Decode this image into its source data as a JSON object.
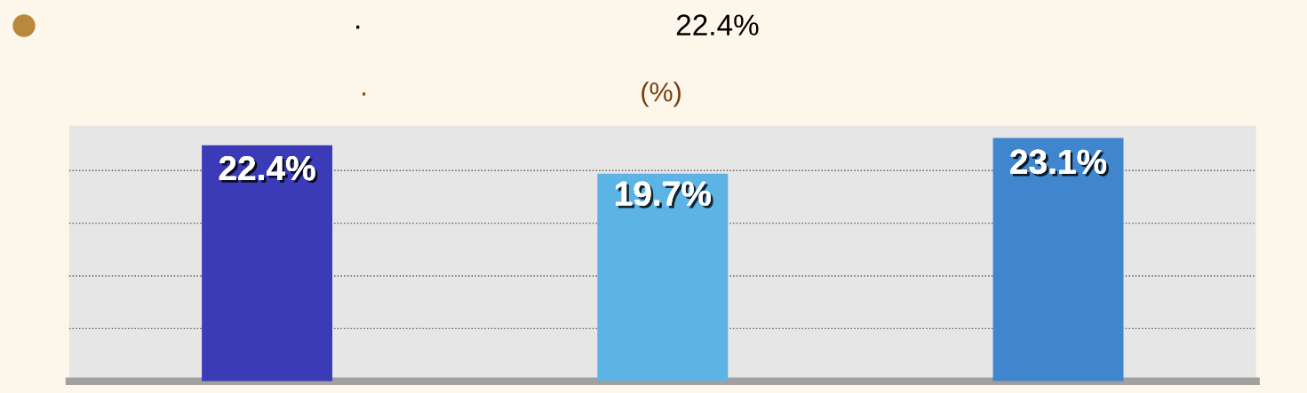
{
  "chart_data": {
    "type": "bar",
    "title": "·                                      22.4%",
    "subtitle": "·                                    (%)",
    "categories": [
      null,
      null,
      null
    ],
    "values": [
      22.4,
      19.7,
      23.1
    ],
    "colors": [
      "#3b3bb8",
      "#5cb4e4",
      "#3f86cf"
    ],
    "value_labels": [
      "22.4%",
      "19.7%",
      "23.1%"
    ],
    "grid": "y",
    "legend": false
  }
}
